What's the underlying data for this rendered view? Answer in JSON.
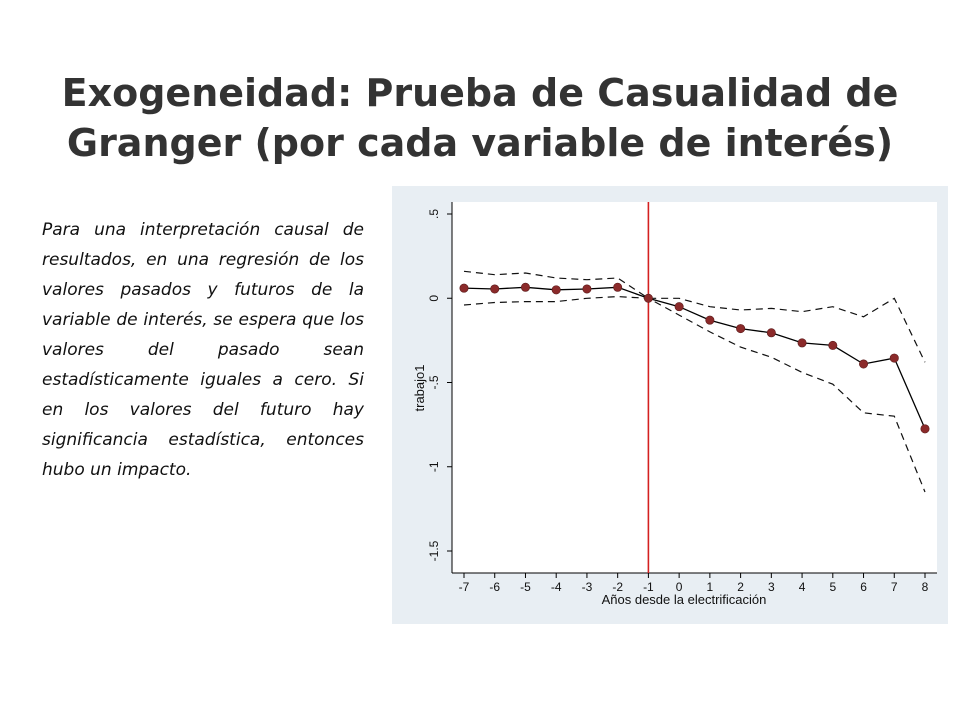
{
  "slide": {
    "title_line1": "Exogeneidad: Prueba de Casualidad de",
    "title_line2": "Granger (por cada variable de interés)",
    "body": "Para una interpretación causal de resultados, en una regresión de los valores pasados y futuros de la variable de interés, se espera que los valores del pasado sean estadísticamente iguales a cero.  Si en los valores del futuro hay significancia estadística, entonces hubo un impacto."
  },
  "chart_data": {
    "type": "line",
    "xlabel": "Años desde la electrificación",
    "ylabel": "trabajo1",
    "x": [
      -7,
      -6,
      -5,
      -4,
      -3,
      -2,
      -1,
      0,
      1,
      2,
      3,
      4,
      5,
      6,
      7,
      8
    ],
    "x_tick_labels": [
      "-7",
      "-6",
      "-5",
      "-4",
      "-3",
      "-2",
      "-1",
      "0",
      "1",
      "2",
      "3",
      "4",
      "5",
      "6",
      "7",
      "8"
    ],
    "y_ticks": [
      0.5,
      0,
      -0.5,
      -1,
      -1.5
    ],
    "y_tick_labels": [
      ".5",
      "0",
      "-.5",
      "-1",
      "-1.5"
    ],
    "ylim": [
      -1.5,
      0.5
    ],
    "grid": false,
    "reference_line_x": -1,
    "series": [
      {
        "role": "estimate",
        "values": [
          0.06,
          0.055,
          0.065,
          0.05,
          0.055,
          0.065,
          0.0,
          -0.05,
          -0.13,
          -0.18,
          -0.205,
          -0.265,
          -0.28,
          -0.39,
          -0.355,
          -0.775
        ]
      },
      {
        "role": "upper-ci",
        "values": [
          0.16,
          0.14,
          0.15,
          0.12,
          0.11,
          0.12,
          0.0,
          0.0,
          -0.05,
          -0.07,
          -0.06,
          -0.08,
          -0.05,
          -0.11,
          0.0,
          -0.38
        ]
      },
      {
        "role": "lower-ci",
        "values": [
          -0.04,
          -0.025,
          -0.02,
          -0.02,
          0.0,
          0.01,
          0.0,
          -0.1,
          -0.2,
          -0.29,
          -0.35,
          -0.44,
          -0.51,
          -0.68,
          -0.7,
          -1.15
        ]
      }
    ],
    "colors": {
      "estimate": "#000000",
      "marker": "#8b2a2a",
      "ci": "#111111",
      "reference_line": "#d42020",
      "panel": "#e8eef3",
      "plot": "#ffffff"
    }
  }
}
